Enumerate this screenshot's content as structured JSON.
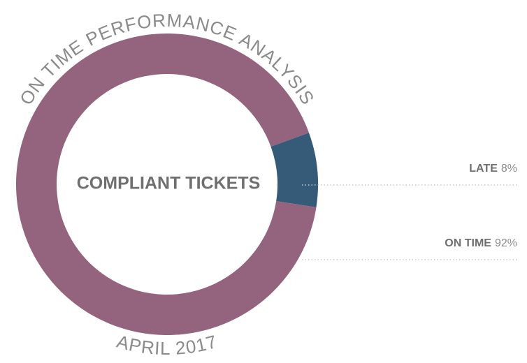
{
  "chart_data": {
    "type": "donut",
    "title": "ON TIME PERFORMANCE ANALYSIS",
    "subtitle": "APRIL 2017",
    "center_label": "COMPLIANT TICKETS",
    "categories": [
      "LATE",
      "ON TIME"
    ],
    "values": [
      8,
      92
    ],
    "value_labels": [
      "8%",
      "92%"
    ],
    "colors": [
      "#355b78",
      "#94637e"
    ]
  }
}
